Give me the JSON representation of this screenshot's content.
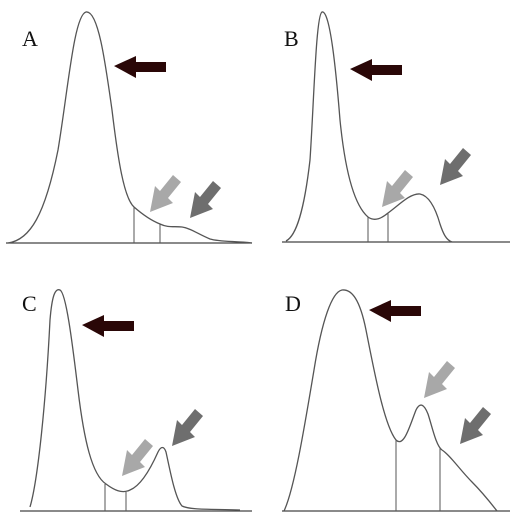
{
  "figure": {
    "panels": [
      {
        "letter": "A"
      },
      {
        "letter": "B"
      },
      {
        "letter": "C"
      },
      {
        "letter": "D"
      }
    ],
    "colors": {
      "arrow_dark": "#2a0707",
      "arrow_light": "#a8a8a8",
      "arrow_medium": "#6e6e6e",
      "curve": "#555555",
      "background": "#ffffff"
    },
    "icons": {
      "main_peak_marker": "left-arrow-icon",
      "secondary_peak_marker": "down-left-arrow-icon"
    }
  }
}
